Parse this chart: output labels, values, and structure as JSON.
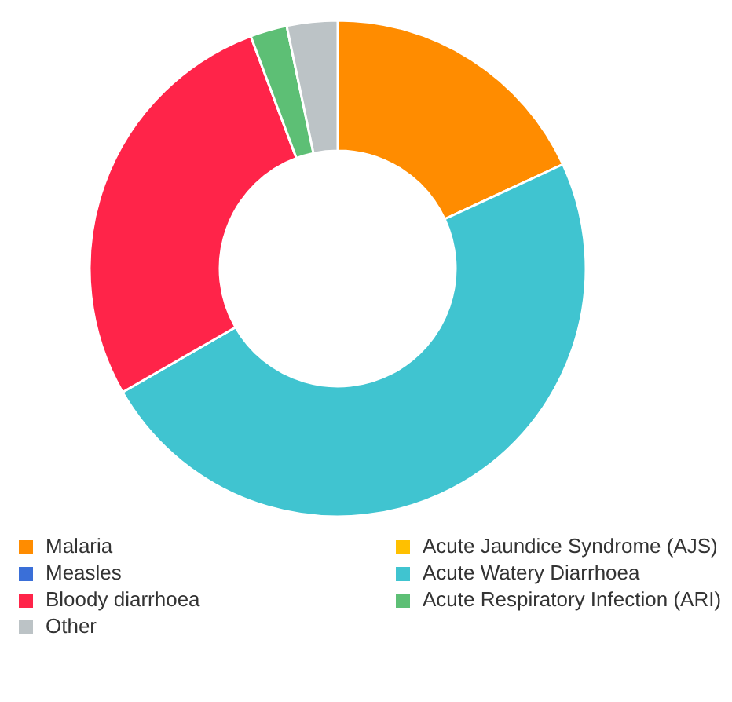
{
  "chart_data": {
    "type": "donut",
    "categories": [
      "Malaria",
      "Acute Jaundice Syndrome (AJS)",
      "Measles",
      "Acute Watery Diarrhoea",
      "Bloody diarrhoea",
      "Acute Respiratory Infection (ARI)",
      "Other"
    ],
    "values": [
      18.1,
      0,
      0,
      48.6,
      27.6,
      2.4,
      3.3
    ],
    "colors": [
      "#ff8c00",
      "#ffc000",
      "#3a6fd8",
      "#40c4d0",
      "#ff2449",
      "#5dbf75",
      "#bcc3c6"
    ],
    "legend": "bottom"
  }
}
